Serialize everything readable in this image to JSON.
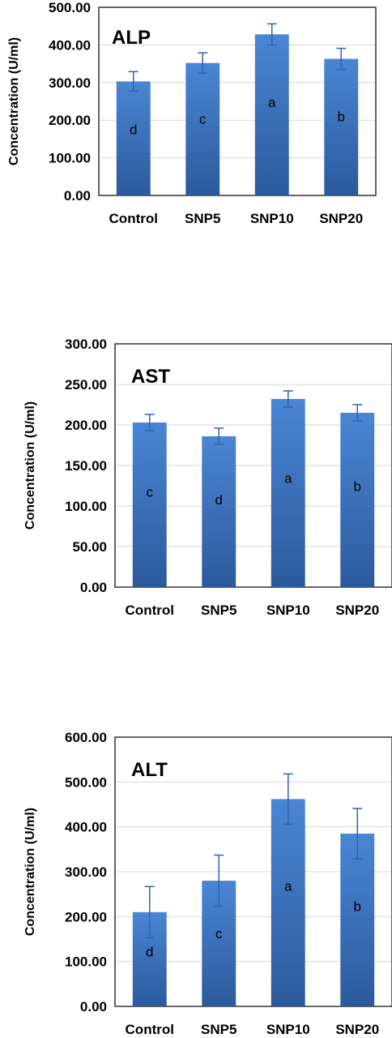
{
  "chart_data": [
    {
      "type": "bar",
      "title": "ALP",
      "ylabel": "Concentration (U/ml)",
      "ylim": [
        0,
        500
      ],
      "yticks": [
        "0.00",
        "100.00",
        "200.00",
        "300.00",
        "400.00",
        "500.00"
      ],
      "categories": [
        "Control",
        "SNP5",
        "SNP10",
        "SNP20"
      ],
      "values": [
        303,
        352,
        428,
        363
      ],
      "errors": [
        26,
        27,
        28,
        28
      ],
      "letters": [
        "d",
        "c",
        "a",
        "b"
      ],
      "grid": true,
      "bar_color": "#3a6fbf"
    },
    {
      "type": "bar",
      "title": "AST",
      "ylabel": "Concentration (U/ml)",
      "ylim": [
        0,
        300
      ],
      "yticks": [
        "0.00",
        "50.00",
        "100.00",
        "150.00",
        "200.00",
        "250.00",
        "300.00"
      ],
      "categories": [
        "Control",
        "SNP5",
        "SNP10",
        "SNP20"
      ],
      "values": [
        203,
        186,
        232,
        215
      ],
      "errors": [
        10,
        10,
        10,
        10
      ],
      "letters": [
        "c",
        "d",
        "a",
        "b"
      ],
      "grid": true,
      "bar_color": "#3a6fbf"
    },
    {
      "type": "bar",
      "title": "ALT",
      "ylabel": "Concentration (U/ml)",
      "ylim": [
        0,
        600
      ],
      "yticks": [
        "0.00",
        "100.00",
        "200.00",
        "300.00",
        "400.00",
        "500.00",
        "600.00"
      ],
      "categories": [
        "Control",
        "SNP5",
        "SNP10",
        "SNP20"
      ],
      "values": [
        210,
        280,
        462,
        385
      ],
      "errors": [
        57,
        57,
        56,
        56
      ],
      "letters": [
        "d",
        "c",
        "a",
        "b"
      ],
      "grid": true,
      "bar_color": "#3a6fbf"
    }
  ]
}
